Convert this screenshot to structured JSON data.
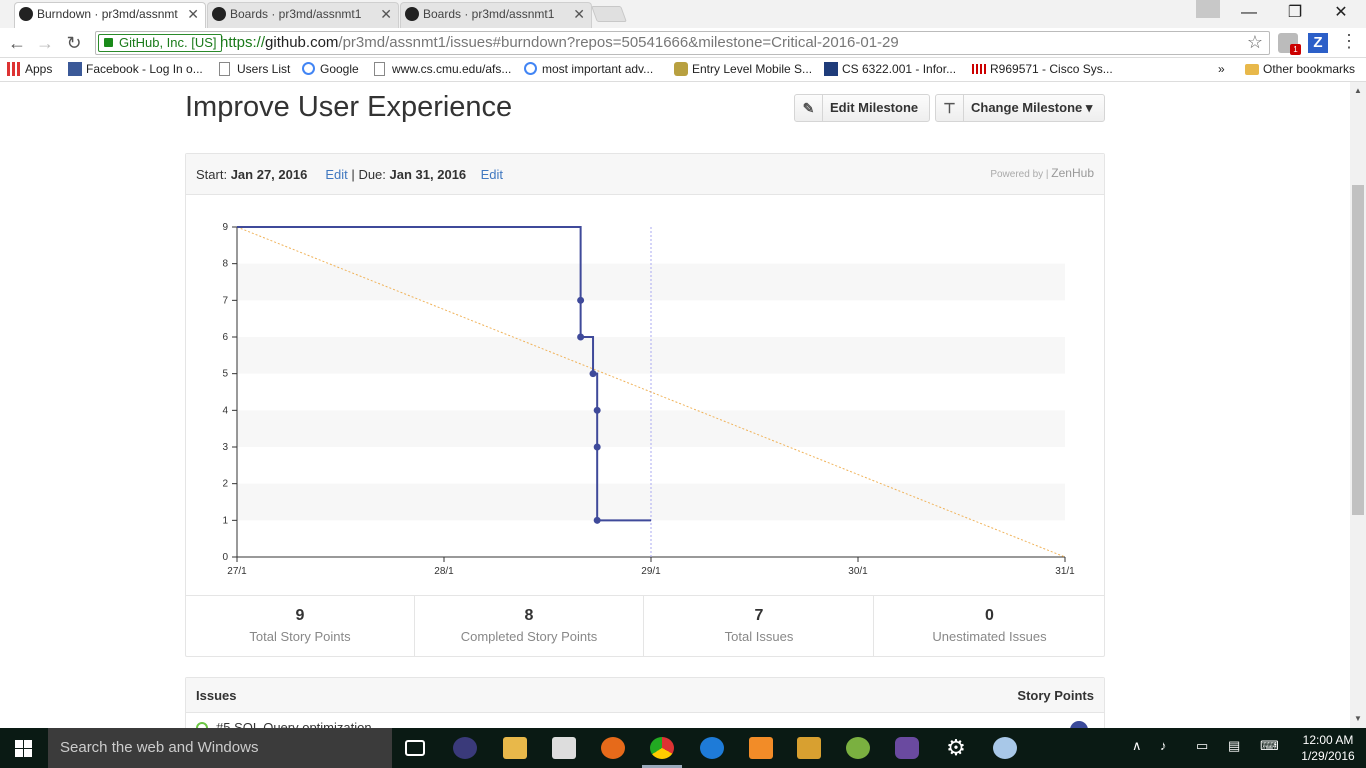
{
  "browser": {
    "tabs": [
      {
        "label": "Burndown · pr3md/assnmt"
      },
      {
        "label": "Boards · pr3md/assnmt1"
      },
      {
        "label": "Boards · pr3md/assnmt1"
      }
    ],
    "tab_close": "✕",
    "window": {
      "minimize": "—",
      "restore": "❐",
      "close": "✕"
    },
    "security_label": "GitHub, Inc. [US]",
    "url_scheme": "https://",
    "url_host": "github.com",
    "url_rest": "/pr3md/assnmt1/issues#burndown?repos=50541666&milestone=Critical-2016-01-29",
    "ext_badge": "1",
    "ext_z": "Z",
    "bookmarks": [
      {
        "label": "Apps"
      },
      {
        "label": "Facebook - Log In o..."
      },
      {
        "label": "Users List"
      },
      {
        "label": "Google"
      },
      {
        "label": "www.cs.cmu.edu/afs..."
      },
      {
        "label": "most important adv..."
      },
      {
        "label": "Entry Level Mobile S..."
      },
      {
        "label": "CS 6322.001 - Infor..."
      },
      {
        "label": "R969571 - Cisco Sys..."
      }
    ],
    "bookmarks_more": "»",
    "other_bookmarks": "Other bookmarks"
  },
  "milestone": {
    "title": "Improve User Experience",
    "edit_button": "Edit Milestone",
    "change_button": "Change Milestone ▾",
    "start_label": "Start:",
    "start_date": "Jan 27, 2016",
    "edit_link": "Edit",
    "separator": "|",
    "due_label": "Due:",
    "due_date": "Jan 31, 2016",
    "powered_by": "Powered by |",
    "powered_brand": "ZenHub"
  },
  "chart_data": {
    "type": "line",
    "x_ticks": [
      "27/1",
      "28/1",
      "29/1",
      "30/1",
      "31/1"
    ],
    "y_ticks": [
      0,
      1,
      2,
      3,
      4,
      5,
      6,
      7,
      8,
      9
    ],
    "ylim": [
      0,
      9
    ],
    "xlim_days": [
      27,
      31
    ],
    "today_marker_day": 29,
    "series": [
      {
        "kind": "actual",
        "color": "#3f4a9a",
        "points": [
          {
            "day": 27.0,
            "value": 9
          },
          {
            "day": 28.66,
            "value": 9
          },
          {
            "day": 28.66,
            "value": 7
          },
          {
            "day": 28.66,
            "value": 6
          },
          {
            "day": 28.72,
            "value": 6
          },
          {
            "day": 28.72,
            "value": 5
          },
          {
            "day": 28.74,
            "value": 5
          },
          {
            "day": 28.74,
            "value": 4
          },
          {
            "day": 28.74,
            "value": 3
          },
          {
            "day": 28.74,
            "value": 1
          },
          {
            "day": 29.0,
            "value": 1
          }
        ],
        "dots": [
          {
            "day": 28.66,
            "value": 7
          },
          {
            "day": 28.66,
            "value": 6
          },
          {
            "day": 28.72,
            "value": 5
          },
          {
            "day": 28.74,
            "value": 4
          },
          {
            "day": 28.74,
            "value": 3
          },
          {
            "day": 28.74,
            "value": 1
          }
        ]
      },
      {
        "kind": "ideal",
        "color": "#f0b35a",
        "points": [
          {
            "day": 27,
            "value": 9
          },
          {
            "day": 31,
            "value": 0
          }
        ]
      }
    ],
    "grid_bands": true
  },
  "stats": [
    {
      "value": "9",
      "label": "Total Story Points"
    },
    {
      "value": "8",
      "label": "Completed Story Points"
    },
    {
      "value": "7",
      "label": "Total Issues"
    },
    {
      "value": "0",
      "label": "Unestimated Issues"
    }
  ],
  "issues": {
    "header": "Issues",
    "points_header": "Story Points",
    "first_row": "#5 SQL Query optimization"
  },
  "taskbar": {
    "search_placeholder": "Search the web and Windows",
    "time": "12:00 AM",
    "date": "1/29/2016"
  }
}
